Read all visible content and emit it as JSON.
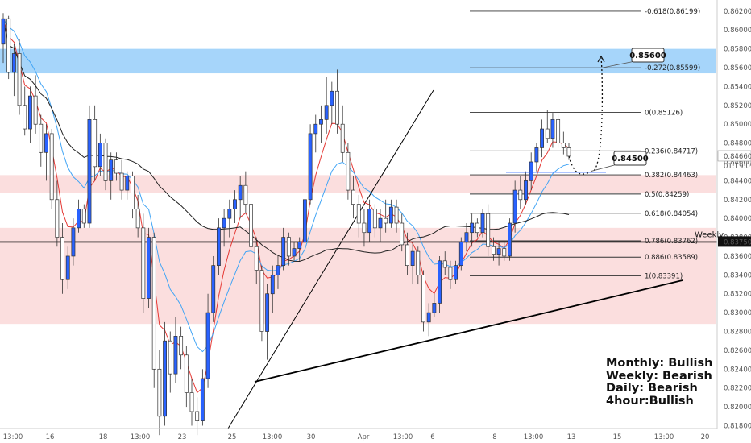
{
  "chart_data": {
    "type": "candlestick",
    "instrument_hint": "price chart (4-hour candles)",
    "y_axis": {
      "range": [
        0.8177,
        0.8632
      ],
      "ticks": [
        "0.81800",
        "0.82000",
        "0.82200",
        "0.82400",
        "0.82600",
        "0.82800",
        "0.83000",
        "0.83200",
        "0.83400",
        "0.83600",
        "0.83800",
        "0.84000",
        "0.84200",
        "0.84400",
        "0.84600",
        "0.84800",
        "0.85000",
        "0.85200",
        "0.85400",
        "0.85600",
        "0.85800",
        "0.86000",
        "0.86200"
      ],
      "current_price": "0.84660",
      "countdown": "01:19:09",
      "weekly_label": "Weekly",
      "weekly_price": "0.83750"
    },
    "x_axis": {
      "labels": [
        "13:00",
        "16",
        "18",
        "13:00",
        "23",
        "25",
        "13:00",
        "30",
        "Apr",
        "13:00",
        "6",
        "8",
        "13:00",
        "13",
        "15",
        "13:00",
        "20"
      ]
    },
    "zones": [
      {
        "name": "supply-zone-blue",
        "y_top": 0.858,
        "y_bottom": 0.8554,
        "color": "#90caf9"
      },
      {
        "name": "resistance-zone-pink",
        "y_top": 0.8446,
        "y_bottom": 0.8427,
        "color": "#f8c8c8"
      },
      {
        "name": "weekly-zone-pink",
        "y_top": 0.839,
        "y_bottom": 0.8288,
        "color": "#f8c8c8"
      }
    ],
    "weekly_level": 0.8375,
    "fibonacci": [
      {
        "ratio": "-0.618",
        "price": 0.86199,
        "label": "-0.618(0.86199)"
      },
      {
        "ratio": "-0.272",
        "price": 0.85599,
        "label": "-0.272(0.85599)"
      },
      {
        "ratio": "0",
        "price": 0.85126,
        "label": "0(0.85126)"
      },
      {
        "ratio": "0.236",
        "price": 0.84717,
        "label": "0.236(0.84717)"
      },
      {
        "ratio": "0.382",
        "price": 0.84463,
        "label": "0.382(0.84463)"
      },
      {
        "ratio": "0.5",
        "price": 0.84259,
        "label": "0.5(0.84259)"
      },
      {
        "ratio": "0.618",
        "price": 0.84054,
        "label": "0.618(0.84054)"
      },
      {
        "ratio": "0.786",
        "price": 0.83762,
        "label": "0.786(0.83762)"
      },
      {
        "ratio": "0.886",
        "price": 0.83589,
        "label": "0.886(0.83589)"
      },
      {
        "ratio": "1",
        "price": 0.83391,
        "label": "1(0.83391)"
      }
    ],
    "callouts": [
      {
        "text": "0.85600",
        "price": 0.856
      },
      {
        "text": "0.84500",
        "price": 0.845
      }
    ],
    "candles": [
      [
        0.8585,
        0.8618,
        0.8565,
        0.8612
      ],
      [
        0.8612,
        0.8615,
        0.8548,
        0.8555
      ],
      [
        0.8555,
        0.8585,
        0.853,
        0.8575
      ],
      [
        0.8575,
        0.859,
        0.851,
        0.852
      ],
      [
        0.852,
        0.854,
        0.8488,
        0.8495
      ],
      [
        0.8495,
        0.854,
        0.848,
        0.853
      ],
      [
        0.853,
        0.8552,
        0.849,
        0.85
      ],
      [
        0.85,
        0.851,
        0.8455,
        0.847
      ],
      [
        0.847,
        0.85,
        0.844,
        0.849
      ],
      [
        0.849,
        0.8495,
        0.841,
        0.842
      ],
      [
        0.842,
        0.844,
        0.837,
        0.838
      ],
      [
        0.838,
        0.8395,
        0.832,
        0.8335
      ],
      [
        0.8335,
        0.837,
        0.8325,
        0.836
      ],
      [
        0.836,
        0.84,
        0.835,
        0.839
      ],
      [
        0.839,
        0.842,
        0.8385,
        0.841
      ],
      [
        0.841,
        0.8415,
        0.839,
        0.8395
      ],
      [
        0.8395,
        0.852,
        0.839,
        0.8505
      ],
      [
        0.8505,
        0.852,
        0.844,
        0.8455
      ],
      [
        0.8455,
        0.849,
        0.8445,
        0.848
      ],
      [
        0.848,
        0.8485,
        0.843,
        0.844
      ],
      [
        0.844,
        0.847,
        0.842,
        0.8462
      ],
      [
        0.8462,
        0.847,
        0.844,
        0.8448
      ],
      [
        0.8448,
        0.8462,
        0.842,
        0.843
      ],
      [
        0.843,
        0.845,
        0.842,
        0.8445
      ],
      [
        0.8445,
        0.845,
        0.84,
        0.841
      ],
      [
        0.841,
        0.8425,
        0.838,
        0.839
      ],
      [
        0.839,
        0.8405,
        0.83,
        0.8315
      ],
      [
        0.8315,
        0.839,
        0.8305,
        0.838
      ],
      [
        0.838,
        0.8385,
        0.822,
        0.824
      ],
      [
        0.824,
        0.826,
        0.817,
        0.819
      ],
      [
        0.819,
        0.829,
        0.818,
        0.827
      ],
      [
        0.827,
        0.828,
        0.8215,
        0.8235
      ],
      [
        0.8235,
        0.8295,
        0.8225,
        0.8275
      ],
      [
        0.8275,
        0.8285,
        0.824,
        0.8255
      ],
      [
        0.8255,
        0.8265,
        0.82,
        0.8215
      ],
      [
        0.8215,
        0.823,
        0.818,
        0.8195
      ],
      [
        0.8195,
        0.821,
        0.817,
        0.8185
      ],
      [
        0.8185,
        0.824,
        0.818,
        0.823
      ],
      [
        0.823,
        0.832,
        0.822,
        0.83
      ],
      [
        0.83,
        0.836,
        0.829,
        0.835
      ],
      [
        0.835,
        0.84,
        0.834,
        0.839
      ],
      [
        0.839,
        0.841,
        0.837,
        0.84
      ],
      [
        0.84,
        0.842,
        0.838,
        0.841
      ],
      [
        0.841,
        0.843,
        0.8395,
        0.842
      ],
      [
        0.842,
        0.8445,
        0.84,
        0.8435
      ],
      [
        0.8435,
        0.845,
        0.8405,
        0.8415
      ],
      [
        0.8415,
        0.842,
        0.836,
        0.837
      ],
      [
        0.837,
        0.838,
        0.833,
        0.8345
      ],
      [
        0.8345,
        0.835,
        0.827,
        0.828
      ],
      [
        0.828,
        0.833,
        0.825,
        0.832
      ],
      [
        0.832,
        0.835,
        0.83,
        0.834
      ],
      [
        0.834,
        0.836,
        0.8325,
        0.835
      ],
      [
        0.835,
        0.839,
        0.8345,
        0.838
      ],
      [
        0.838,
        0.8385,
        0.835,
        0.836
      ],
      [
        0.836,
        0.8375,
        0.8355,
        0.8368
      ],
      [
        0.8368,
        0.838,
        0.8355,
        0.8375
      ],
      [
        0.8375,
        0.843,
        0.837,
        0.842
      ],
      [
        0.842,
        0.85,
        0.8415,
        0.849
      ],
      [
        0.849,
        0.851,
        0.847,
        0.85
      ],
      [
        0.85,
        0.852,
        0.848,
        0.8505
      ],
      [
        0.8505,
        0.855,
        0.849,
        0.852
      ],
      [
        0.852,
        0.8545,
        0.85,
        0.8535
      ],
      [
        0.8535,
        0.8558,
        0.849,
        0.85
      ],
      [
        0.85,
        0.852,
        0.846,
        0.847
      ],
      [
        0.847,
        0.848,
        0.842,
        0.843
      ],
      [
        0.843,
        0.8445,
        0.84,
        0.8415
      ],
      [
        0.8415,
        0.8425,
        0.838,
        0.8395
      ],
      [
        0.8395,
        0.841,
        0.837,
        0.8385
      ],
      [
        0.8385,
        0.842,
        0.8375,
        0.841
      ],
      [
        0.841,
        0.8415,
        0.838,
        0.839
      ],
      [
        0.839,
        0.841,
        0.8375,
        0.84
      ],
      [
        0.84,
        0.842,
        0.8385,
        0.8395
      ],
      [
        0.8395,
        0.842,
        0.839,
        0.8412
      ],
      [
        0.8412,
        0.842,
        0.8385,
        0.8395
      ],
      [
        0.8395,
        0.8405,
        0.8365,
        0.8372
      ],
      [
        0.8372,
        0.8385,
        0.834,
        0.835
      ],
      [
        0.835,
        0.8375,
        0.833,
        0.8365
      ],
      [
        0.8365,
        0.837,
        0.833,
        0.834
      ],
      [
        0.834,
        0.8345,
        0.828,
        0.829
      ],
      [
        0.829,
        0.831,
        0.8275,
        0.83
      ],
      [
        0.83,
        0.832,
        0.8295,
        0.831
      ],
      [
        0.831,
        0.836,
        0.83,
        0.8355
      ],
      [
        0.8355,
        0.8365,
        0.834,
        0.8348
      ],
      [
        0.8348,
        0.8355,
        0.8325,
        0.8335
      ],
      [
        0.8335,
        0.8355,
        0.833,
        0.835
      ],
      [
        0.835,
        0.838,
        0.8345,
        0.8375
      ],
      [
        0.8375,
        0.8395,
        0.8365,
        0.8385
      ],
      [
        0.8385,
        0.8405,
        0.837,
        0.8395
      ],
      [
        0.8395,
        0.84,
        0.838,
        0.8385
      ],
      [
        0.8385,
        0.841,
        0.838,
        0.8405
      ],
      [
        0.8405,
        0.8415,
        0.836,
        0.837
      ],
      [
        0.837,
        0.838,
        0.8355,
        0.8362
      ],
      [
        0.8362,
        0.8375,
        0.835,
        0.8368
      ],
      [
        0.8368,
        0.8375,
        0.8355,
        0.836
      ],
      [
        0.836,
        0.84,
        0.8355,
        0.8395
      ],
      [
        0.8395,
        0.844,
        0.8385,
        0.843
      ],
      [
        0.843,
        0.8445,
        0.841,
        0.842
      ],
      [
        0.842,
        0.845,
        0.8415,
        0.844
      ],
      [
        0.844,
        0.847,
        0.843,
        0.846
      ],
      [
        0.846,
        0.848,
        0.845,
        0.8475
      ],
      [
        0.8475,
        0.8505,
        0.8465,
        0.8495
      ],
      [
        0.8495,
        0.8515,
        0.848,
        0.8485
      ],
      [
        0.8485,
        0.8512,
        0.8475,
        0.8505
      ],
      [
        0.8505,
        0.851,
        0.8475,
        0.848
      ],
      [
        0.848,
        0.8492,
        0.8468,
        0.8475
      ],
      [
        0.8475,
        0.848,
        0.8462,
        0.8466
      ]
    ],
    "projection": "dotted path from last candle dipping to ~0.8450 then rising to ~0.8570"
  },
  "bias": {
    "monthly": "Monthly: Bullish",
    "weekly": "Weekly: Bearish",
    "daily": "Daily: Bearish",
    "four_hour": "4hour:Bullish"
  },
  "colors": {
    "bull": "#2962ff",
    "bear": "#ffffff",
    "ema_fast": "#e53935",
    "ema_mid": "#42a5f5",
    "sma_slow": "#222222"
  }
}
